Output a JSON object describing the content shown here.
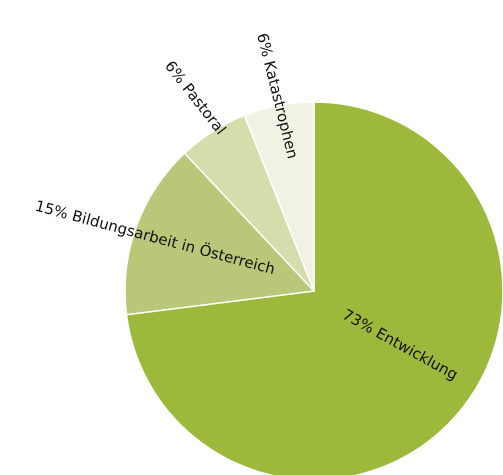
{
  "chart_data": {
    "type": "pie",
    "title": "",
    "slices": [
      {
        "label": "73% Entwicklung",
        "value": 73,
        "color": "#9db93b"
      },
      {
        "label": "15% Bildungsarbeit in Österreich",
        "value": 15,
        "color": "#b9c878"
      },
      {
        "label": "6% Pastoral",
        "value": 6,
        "color": "#d5ddad"
      },
      {
        "label": "6% Katastrophen",
        "value": 6,
        "color": "#f1f2e4"
      }
    ],
    "start_angle": "12 o'clock",
    "direction": "clockwise",
    "legend": "none"
  }
}
